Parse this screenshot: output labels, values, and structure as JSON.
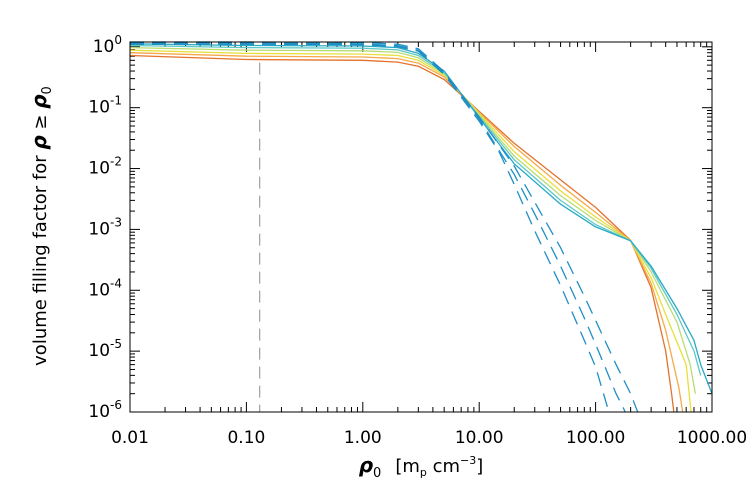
{
  "chart_data": {
    "type": "line",
    "xlabel": "ρ₀  [m_p cm⁻³]",
    "xlabel_parts": {
      "symbol": "ρ",
      "symbol_sub": "0",
      "unit_prefix": "[m",
      "unit_sub": "p",
      "unit_mid": " cm",
      "unit_sup": "−3",
      "unit_suffix": "]"
    },
    "ylabel": "volume filling factor for ρ ≥ ρ₀",
    "ylabel_parts": {
      "text": "volume filling factor for ",
      "sym1": "ρ",
      "rel": " ≥ ",
      "sym2": "ρ",
      "sym2_sub": "0"
    },
    "x_scale": "log",
    "y_scale": "log",
    "xlim": [
      0.01,
      1000
    ],
    "ylim": [
      1e-06,
      1.2
    ],
    "x_ticks": [
      {
        "value": 0.01,
        "label": "0.01"
      },
      {
        "value": 0.1,
        "label": "0.10"
      },
      {
        "value": 1,
        "label": "1.00"
      },
      {
        "value": 10,
        "label": "10.00"
      },
      {
        "value": 100,
        "label": "100.00"
      },
      {
        "value": 1000,
        "label": "1000.00"
      }
    ],
    "y_ticks": [
      {
        "value": 1,
        "base": "10",
        "exp": "0"
      },
      {
        "value": 0.1,
        "base": "10",
        "exp": "-1"
      },
      {
        "value": 0.01,
        "base": "10",
        "exp": "-2"
      },
      {
        "value": 0.001,
        "base": "10",
        "exp": "-3"
      },
      {
        "value": 0.0001,
        "base": "10",
        "exp": "-4"
      },
      {
        "value": 1e-05,
        "base": "10",
        "exp": "-5"
      },
      {
        "value": 1e-06,
        "base": "10",
        "exp": "-6"
      }
    ],
    "reference_line": {
      "x": 0.13,
      "color": "#a0a0a0",
      "style": "dashed"
    },
    "series": [
      {
        "color": "#e4722c",
        "style": "solid",
        "points": [
          [
            0.01,
            0.72
          ],
          [
            0.1,
            0.62
          ],
          [
            1,
            0.6
          ],
          [
            2,
            0.56
          ],
          [
            3,
            0.48
          ],
          [
            5,
            0.29
          ],
          [
            10,
            0.087
          ],
          [
            20,
            0.026
          ],
          [
            50,
            0.0065
          ],
          [
            100,
            0.0023
          ],
          [
            200,
            0.00066
          ],
          [
            300,
            0.00011
          ],
          [
            400,
            1e-05
          ],
          [
            450,
            2e-06
          ],
          [
            470,
            1e-06
          ]
        ]
      },
      {
        "color": "#f5a94a",
        "style": "solid",
        "points": [
          [
            0.01,
            0.8
          ],
          [
            0.1,
            0.7
          ],
          [
            1,
            0.68
          ],
          [
            2,
            0.64
          ],
          [
            3,
            0.54
          ],
          [
            5,
            0.32
          ],
          [
            10,
            0.084
          ],
          [
            20,
            0.023
          ],
          [
            50,
            0.0053
          ],
          [
            100,
            0.0019
          ],
          [
            200,
            0.00065
          ],
          [
            300,
            0.00013
          ],
          [
            400,
            2.2e-05
          ],
          [
            520,
            2.5e-06
          ],
          [
            560,
            1e-06
          ]
        ]
      },
      {
        "color": "#e8df3a",
        "style": "solid",
        "points": [
          [
            0.01,
            0.88
          ],
          [
            0.1,
            0.78
          ],
          [
            1,
            0.76
          ],
          [
            2,
            0.72
          ],
          [
            3,
            0.6
          ],
          [
            5,
            0.34
          ],
          [
            10,
            0.08
          ],
          [
            20,
            0.019
          ],
          [
            50,
            0.0043
          ],
          [
            100,
            0.0016
          ],
          [
            200,
            0.00065
          ],
          [
            300,
            0.00016
          ],
          [
            400,
            4e-05
          ],
          [
            600,
            6e-06
          ],
          [
            660,
            1e-06
          ]
        ]
      },
      {
        "color": "#b9dc72",
        "style": "solid",
        "points": [
          [
            0.01,
            0.97
          ],
          [
            0.1,
            0.88
          ],
          [
            1,
            0.86
          ],
          [
            2,
            0.81
          ],
          [
            3,
            0.66
          ],
          [
            5,
            0.36
          ],
          [
            10,
            0.076
          ],
          [
            20,
            0.016
          ],
          [
            50,
            0.0036
          ],
          [
            100,
            0.0014
          ],
          [
            200,
            0.00065
          ],
          [
            300,
            0.0002
          ],
          [
            500,
            3e-05
          ],
          [
            650,
            6e-06
          ],
          [
            720,
            2e-06
          ]
        ]
      },
      {
        "color": "#5ec8c6",
        "style": "solid",
        "points": [
          [
            0.01,
            1.05
          ],
          [
            0.1,
            0.97
          ],
          [
            1,
            0.95
          ],
          [
            2,
            0.89
          ],
          [
            3,
            0.72
          ],
          [
            5,
            0.38
          ],
          [
            10,
            0.072
          ],
          [
            20,
            0.014
          ],
          [
            50,
            0.003
          ],
          [
            100,
            0.0012
          ],
          [
            200,
            0.00065
          ],
          [
            300,
            0.00023
          ],
          [
            500,
            4e-05
          ],
          [
            700,
            1e-05
          ],
          [
            800,
            4e-06
          ]
        ]
      },
      {
        "color": "#2aaac6",
        "style": "solid",
        "points": [
          [
            0.01,
            1.12
          ],
          [
            0.1,
            1.05
          ],
          [
            1,
            1.03
          ],
          [
            2,
            0.97
          ],
          [
            3,
            0.78
          ],
          [
            5,
            0.4
          ],
          [
            10,
            0.068
          ],
          [
            20,
            0.012
          ],
          [
            50,
            0.0026
          ],
          [
            100,
            0.0011
          ],
          [
            200,
            0.00065
          ],
          [
            300,
            0.00025
          ],
          [
            500,
            5e-05
          ],
          [
            700,
            1.5e-05
          ],
          [
            800,
            6e-06
          ],
          [
            1000,
            2e-06
          ]
        ]
      },
      {
        "color": "#1f8fc4",
        "style": "dashed",
        "points": [
          [
            0.01,
            1.1
          ],
          [
            0.1,
            1.1
          ],
          [
            1,
            1.08
          ],
          [
            2,
            1.0
          ],
          [
            3,
            0.85
          ],
          [
            5,
            0.35
          ],
          [
            10,
            0.06
          ],
          [
            15,
            0.018
          ],
          [
            20,
            0.0055
          ],
          [
            30,
            0.00095
          ],
          [
            50,
            0.00012
          ],
          [
            80,
            1.5e-05
          ],
          [
            100,
            5.5e-06
          ],
          [
            130,
            1e-06
          ]
        ]
      },
      {
        "color": "#1f8fc4",
        "style": "dashed",
        "points": [
          [
            0.01,
            1.15
          ],
          [
            0.1,
            1.15
          ],
          [
            1,
            1.12
          ],
          [
            2,
            1.04
          ],
          [
            3,
            0.88
          ],
          [
            5,
            0.37
          ],
          [
            10,
            0.065
          ],
          [
            20,
            0.008
          ],
          [
            30,
            0.0018
          ],
          [
            50,
            0.00025
          ],
          [
            80,
            3.5e-05
          ],
          [
            100,
            1.3e-05
          ],
          [
            150,
            2e-06
          ],
          [
            180,
            1e-06
          ]
        ]
      },
      {
        "color": "#1f8fc4",
        "style": "dashed",
        "points": [
          [
            0.01,
            1.2
          ],
          [
            0.1,
            1.2
          ],
          [
            1,
            1.18
          ],
          [
            2,
            1.1
          ],
          [
            3,
            0.93
          ],
          [
            5,
            0.39
          ],
          [
            10,
            0.07
          ],
          [
            20,
            0.011
          ],
          [
            30,
            0.0028
          ],
          [
            50,
            0.0005
          ],
          [
            80,
            8e-05
          ],
          [
            100,
            3.2e-05
          ],
          [
            150,
            6e-06
          ],
          [
            200,
            2e-06
          ],
          [
            230,
            1e-06
          ]
        ]
      }
    ]
  }
}
